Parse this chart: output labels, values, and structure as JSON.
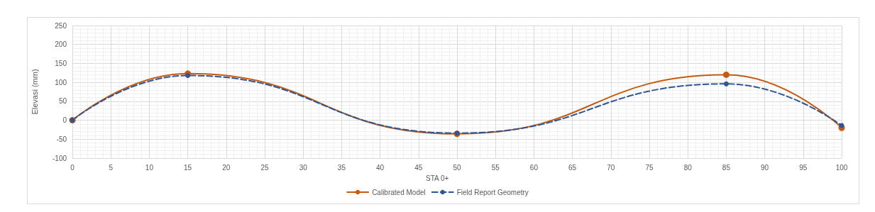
{
  "chart_data": {
    "type": "line",
    "xlabel": "STA 0+",
    "ylabel": "Elevasi (mm)",
    "xlim": [
      0,
      100
    ],
    "xticks": [
      0,
      5,
      10,
      15,
      20,
      25,
      30,
      35,
      40,
      45,
      50,
      55,
      60,
      65,
      70,
      75,
      80,
      85,
      90,
      95,
      100
    ],
    "ylim": [
      -100,
      250
    ],
    "yticks": [
      -100,
      -50,
      0,
      50,
      100,
      150,
      200,
      250
    ],
    "grid": true,
    "legend": "bottom",
    "marker": "circle",
    "series": [
      {
        "name": "Calibrated Model",
        "color": "#c55a11",
        "line_style": "solid",
        "x": [
          0,
          15,
          50,
          85,
          100
        ],
        "values": [
          0,
          123,
          -36,
          120,
          -20
        ]
      },
      {
        "name": "Field Report Geometry",
        "color": "#2f5597",
        "line_style": "dashed",
        "x": [
          0,
          15,
          50,
          85,
          100
        ],
        "values": [
          0,
          118,
          -34,
          96,
          -14
        ]
      }
    ]
  }
}
